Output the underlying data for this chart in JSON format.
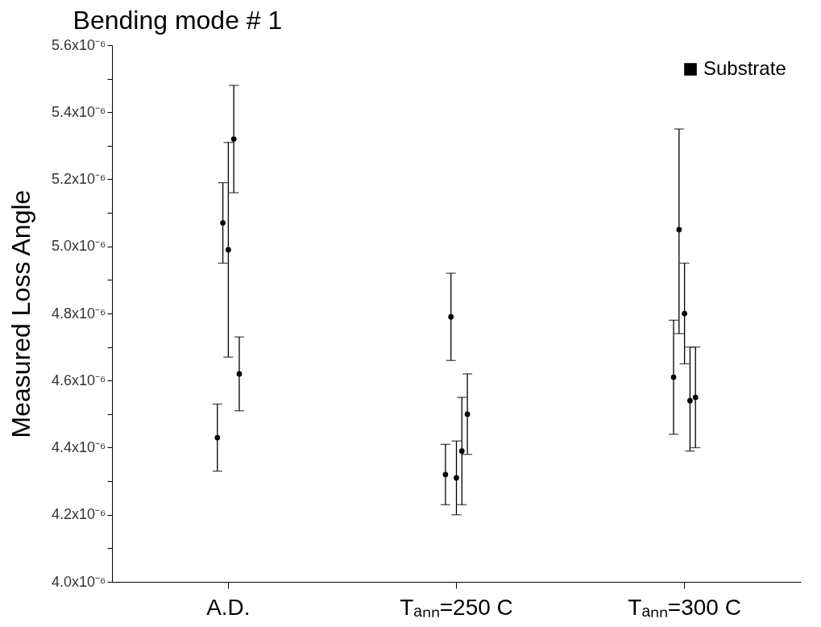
{
  "chart_data": {
    "type": "scatter",
    "title": "Bending mode # 1",
    "ylabel": "Measured Loss Angle",
    "categories": [
      "A.D.",
      "Tₐₙₙ=250 C",
      "Tₐₙₙ=300 C"
    ],
    "series": [
      {
        "name": "Substrate",
        "color": "#000000",
        "x": [
          "A.D.",
          "A.D.",
          "A.D.",
          "A.D.",
          "A.D.",
          "Tₐₙₙ=250 C",
          "Tₐₙₙ=250 C",
          "Tₐₙₙ=250 C",
          "Tₐₙₙ=250 C",
          "Tₐₙₙ=250 C",
          "Tₐₙₙ=300 C",
          "Tₐₙₙ=300 C",
          "Tₐₙₙ=300 C",
          "Tₐₙₙ=300 C",
          "Tₐₙₙ=300 C"
        ],
        "values": [
          4.43e-06,
          5.07e-06,
          4.99e-06,
          5.32e-06,
          4.62e-06,
          4.32e-06,
          4.79e-06,
          4.31e-06,
          4.39e-06,
          4.5e-06,
          4.61e-06,
          5.05e-06,
          4.8e-06,
          4.54e-06,
          4.55e-06
        ],
        "errors": [
          [
            4.33e-06,
            4.53e-06
          ],
          [
            4.95e-06,
            5.19e-06
          ],
          [
            4.67e-06,
            5.31e-06
          ],
          [
            5.16e-06,
            5.48e-06
          ],
          [
            4.51e-06,
            4.73e-06
          ],
          [
            4.23e-06,
            4.41e-06
          ],
          [
            4.66e-06,
            4.92e-06
          ],
          [
            4.2e-06,
            4.42e-06
          ],
          [
            4.23e-06,
            4.55e-06
          ],
          [
            4.38e-06,
            4.62e-06
          ],
          [
            4.44e-06,
            4.78e-06
          ],
          [
            4.74e-06,
            5.35e-06
          ],
          [
            4.65e-06,
            4.95e-06
          ],
          [
            4.39e-06,
            4.7e-06
          ],
          [
            4.4e-06,
            4.7e-06
          ]
        ]
      }
    ],
    "ylim": [
      4e-06,
      5.6e-06
    ],
    "yticks": [
      {
        "value": 4e-06,
        "label": "4.0x10⁻⁶"
      },
      {
        "value": 4.1e-06,
        "label": null
      },
      {
        "value": 4.2e-06,
        "label": "4.2x10⁻⁶"
      },
      {
        "value": 4.3e-06,
        "label": null
      },
      {
        "value": 4.4e-06,
        "label": "4.4x10⁻⁶"
      },
      {
        "value": 4.5e-06,
        "label": null
      },
      {
        "value": 4.6e-06,
        "label": "4.6x10⁻⁶"
      },
      {
        "value": 4.7e-06,
        "label": null
      },
      {
        "value": 4.8e-06,
        "label": "4.8x10⁻⁶"
      },
      {
        "value": 4.9e-06,
        "label": null
      },
      {
        "value": 5e-06,
        "label": "5.0x10⁻⁶"
      },
      {
        "value": 5.1e-06,
        "label": null
      },
      {
        "value": 5.2e-06,
        "label": "5.2x10⁻⁶"
      },
      {
        "value": 5.3e-06,
        "label": null
      },
      {
        "value": 5.4e-06,
        "label": "5.4x10⁻⁶"
      },
      {
        "value": 5.5e-06,
        "label": null
      },
      {
        "value": 5.6e-06,
        "label": "5.6x10⁻⁶"
      }
    ],
    "grid": false,
    "legend": "top right"
  }
}
